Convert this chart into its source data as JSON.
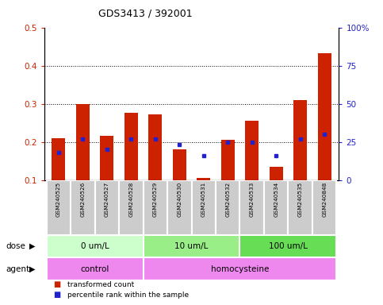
{
  "title": "GDS3413 / 392001",
  "samples": [
    "GSM240525",
    "GSM240526",
    "GSM240527",
    "GSM240528",
    "GSM240529",
    "GSM240530",
    "GSM240531",
    "GSM240532",
    "GSM240533",
    "GSM240534",
    "GSM240535",
    "GSM240848"
  ],
  "transformed_count": [
    0.21,
    0.3,
    0.215,
    0.277,
    0.273,
    0.18,
    0.105,
    0.205,
    0.255,
    0.135,
    0.31,
    0.432
  ],
  "percentile_rank_pct": [
    18,
    27,
    20,
    27,
    27,
    23,
    16,
    25,
    25,
    16,
    27,
    30
  ],
  "ylim_left": [
    0.1,
    0.5
  ],
  "ylim_right": [
    0,
    100
  ],
  "yticks_left": [
    0.1,
    0.2,
    0.3,
    0.4,
    0.5
  ],
  "yticks_right": [
    0,
    25,
    50,
    75,
    100
  ],
  "ytick_labels_right": [
    "0",
    "25",
    "50",
    "75",
    "100%"
  ],
  "bar_color": "#cc2200",
  "dot_color": "#2222cc",
  "bar_width": 0.55,
  "dose_groups": [
    {
      "label": "0 um/L",
      "start": 0,
      "end": 3
    },
    {
      "label": "10 um/L",
      "start": 4,
      "end": 7
    },
    {
      "label": "100 um/L",
      "start": 8,
      "end": 11
    }
  ],
  "dose_colors": [
    "#ccffcc",
    "#99ee88",
    "#66dd55"
  ],
  "agent_groups": [
    {
      "label": "control",
      "start": 0,
      "end": 3
    },
    {
      "label": "homocysteine",
      "start": 4,
      "end": 11
    }
  ],
  "agent_colors": [
    "#ee88ee",
    "#ee88ee"
  ],
  "dose_label": "dose",
  "agent_label": "agent",
  "tick_label_color_left": "#cc2200",
  "tick_label_color_right": "#2222cc",
  "sample_bg_color": "#cccccc",
  "sample_sep_color": "#ffffff"
}
